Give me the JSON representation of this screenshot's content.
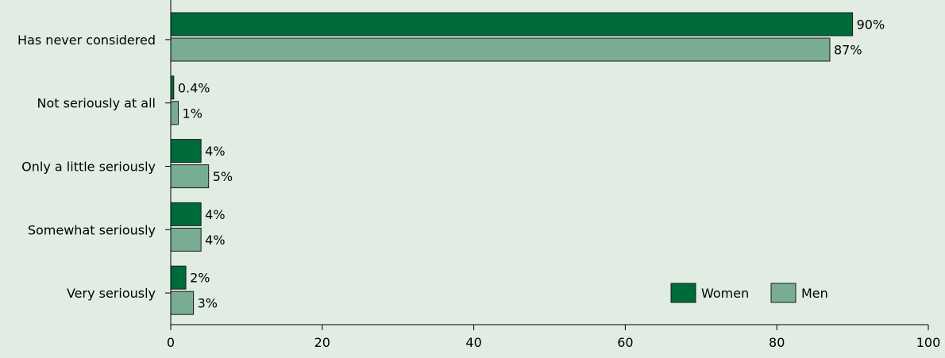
{
  "chart_data": {
    "type": "bar",
    "orientation": "horizontal",
    "categories": [
      "Has never considered",
      "Not seriously at all",
      "Only a little seriously",
      "Somewhat seriously",
      "Very seriously"
    ],
    "series": [
      {
        "name": "Women",
        "color": "#006b3a",
        "values": [
          90,
          0.4,
          4,
          4,
          2
        ],
        "labels": [
          "90%",
          "0.4%",
          "4%",
          "4%",
          "2%"
        ]
      },
      {
        "name": "Men",
        "color": "#78ad93",
        "values": [
          87,
          1,
          5,
          4,
          3
        ],
        "labels": [
          "87%",
          "1%",
          "5%",
          "4%",
          "3%"
        ]
      }
    ],
    "xlim": [
      0,
      100
    ],
    "x_ticks": [
      0,
      20,
      40,
      60,
      80,
      100
    ],
    "x_tick_labels": [
      "0",
      "20",
      "40",
      "60",
      "80",
      "100"
    ],
    "title": "",
    "xlabel": "",
    "ylabel": "",
    "grid": false,
    "legend": {
      "position": "bottom-right"
    }
  },
  "colors": {
    "background": "#e1ede3",
    "women": "#006b3a",
    "men": "#78ad93"
  }
}
